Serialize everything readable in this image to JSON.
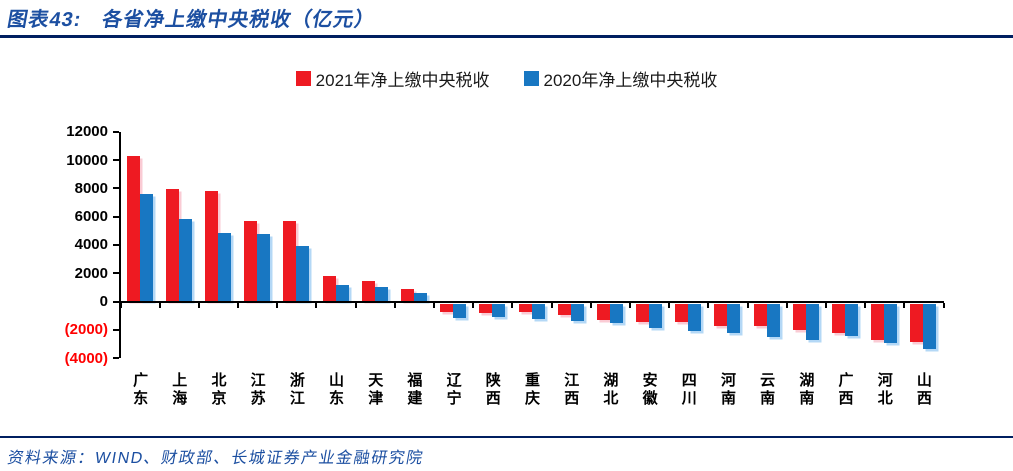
{
  "header": {
    "title": "图表43:　各省净上缴中央税收（亿元）"
  },
  "footer": {
    "source": "资料来源：WIND、财政部、长城证券产业金融研究院"
  },
  "colors": {
    "title_blue": "#1C4FA1",
    "rule_navy": "#001F60",
    "bar_red": "#EE1A22",
    "bar_blue": "#1877C2",
    "negative_tick_red": "#FF0000",
    "axis_black": "#000000"
  },
  "chart_data": {
    "type": "bar",
    "title": "图表43: 各省净上缴中央税收（亿元）",
    "xlabel": "",
    "ylabel": "亿元",
    "ylim": [
      -4000,
      12000
    ],
    "ytick_step": 2000,
    "grid": false,
    "legend_position": "top",
    "yticks": [
      {
        "label": "12000",
        "value": 12000
      },
      {
        "label": "10000",
        "value": 10000
      },
      {
        "label": "8000",
        "value": 8000
      },
      {
        "label": "6000",
        "value": 6000
      },
      {
        "label": "4000",
        "value": 4000
      },
      {
        "label": "2000",
        "value": 2000
      },
      {
        "label": "0",
        "value": 0
      },
      {
        "label": "(2000)",
        "value": -2000
      },
      {
        "label": "(4000)",
        "value": -4000
      }
    ],
    "categories": [
      "广东",
      "上海",
      "北京",
      "江苏",
      "浙江",
      "山东",
      "天津",
      "福建",
      "辽宁",
      "陕西",
      "重庆",
      "江西",
      "湖北",
      "安徽",
      "四川",
      "河南",
      "云南",
      "湖南",
      "广西",
      "河北",
      "山西"
    ],
    "series": [
      {
        "name": "2021年净上缴中央税收",
        "color": "#EE1A22",
        "values": [
          10300,
          7950,
          7800,
          5720,
          5680,
          1820,
          1450,
          900,
          -600,
          -700,
          -620,
          -820,
          -1200,
          -1280,
          -1300,
          -1600,
          -1620,
          -1900,
          -2050,
          -2550,
          -2700
        ]
      },
      {
        "name": "2020年净上缴中央税收",
        "color": "#1877C2",
        "values": [
          7600,
          5800,
          4850,
          4750,
          3950,
          1150,
          1050,
          620,
          -1050,
          -950,
          -1110,
          -1250,
          -1400,
          -1720,
          -1950,
          -2100,
          -2380,
          -2600,
          -2330,
          -2800,
          -3250
        ]
      }
    ]
  }
}
